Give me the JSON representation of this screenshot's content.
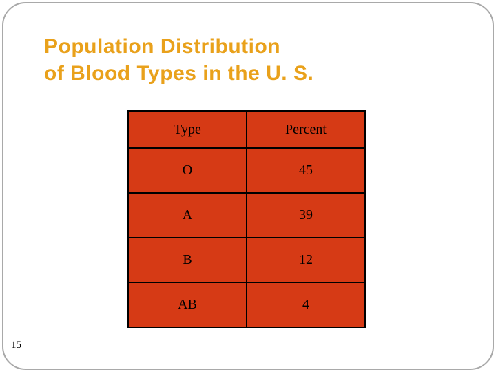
{
  "slide": {
    "title_line1": "Population Distribution",
    "title_line2": "of Blood Types in the U. S.",
    "page_number": "15"
  },
  "colors": {
    "title": "#e9a11b",
    "table_cell": "#d63a15",
    "table_border": "#000000",
    "slide_border": "#a9a9a9"
  },
  "chart_data": {
    "type": "table",
    "title": "Population Distribution of Blood Types in the U. S.",
    "columns": [
      "Type",
      "Percent"
    ],
    "rows": [
      {
        "type": "O",
        "percent": "45"
      },
      {
        "type": "A",
        "percent": "39"
      },
      {
        "type": "B",
        "percent": "12"
      },
      {
        "type": "AB",
        "percent": "4"
      }
    ]
  }
}
